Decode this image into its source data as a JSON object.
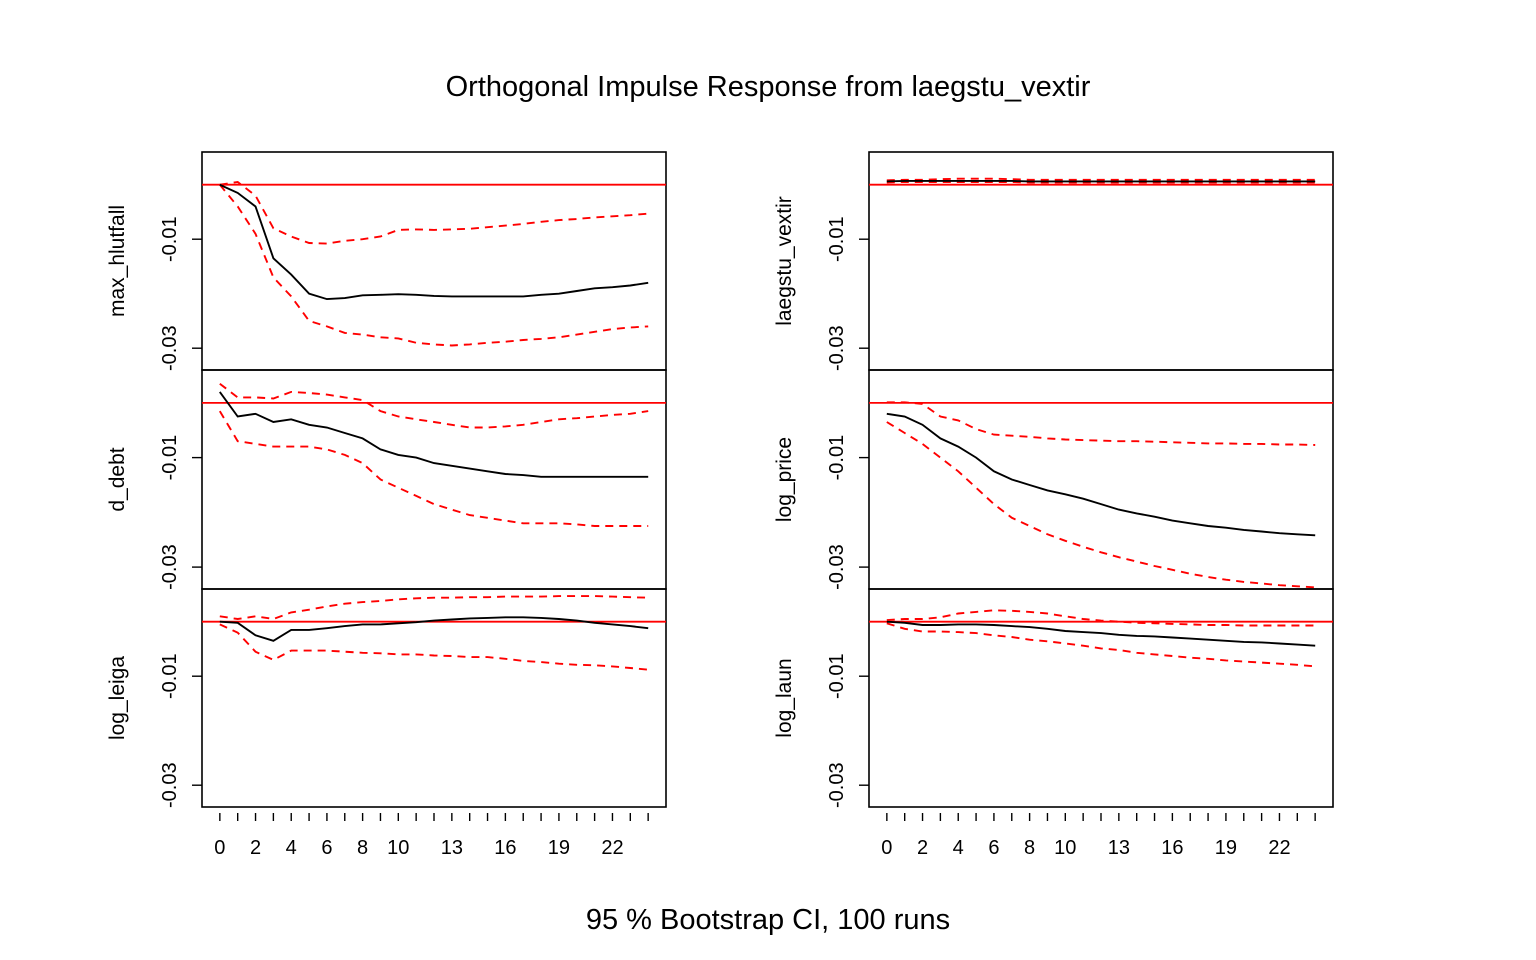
{
  "chart_data": {
    "type": "line",
    "title": "Orthogonal Impulse Response from laegstu_vextir",
    "footer": "95 % Bootstrap CI,  100 runs",
    "x": [
      0,
      1,
      2,
      3,
      4,
      5,
      6,
      7,
      8,
      9,
      10,
      11,
      12,
      13,
      14,
      15,
      16,
      17,
      18,
      19,
      20,
      21,
      22,
      23,
      24
    ],
    "x_tick_labels": [
      "0",
      "2",
      "4",
      "6",
      "8",
      "10",
      "13",
      "16",
      "19",
      "22"
    ],
    "xlim": [
      -1,
      25
    ],
    "ylim": [
      -0.034,
      0.006
    ],
    "y_tick_labels": [
      "-0.01",
      "-0.03"
    ],
    "y_tick_values": [
      -0.01,
      -0.03
    ],
    "zero_line_color": "#ff0000",
    "response_color": "#000000",
    "ci_color": "#ff0000",
    "panels": [
      {
        "name": "max_hlutfall",
        "column": "left",
        "response": [
          0,
          -0.0015,
          -0.004,
          -0.0135,
          -0.0165,
          -0.02,
          -0.021,
          -0.0208,
          -0.0203,
          -0.0202,
          -0.0201,
          -0.0202,
          -0.0204,
          -0.0205,
          -0.0205,
          -0.0205,
          -0.0205,
          -0.0205,
          -0.0202,
          -0.02,
          -0.0195,
          -0.019,
          -0.0188,
          -0.0185,
          -0.018
        ],
        "lower": [
          0,
          -0.004,
          -0.009,
          -0.017,
          -0.0205,
          -0.025,
          -0.026,
          -0.0272,
          -0.0275,
          -0.028,
          -0.0282,
          -0.029,
          -0.0293,
          -0.0295,
          -0.0293,
          -0.029,
          -0.0288,
          -0.0285,
          -0.0283,
          -0.028,
          -0.0275,
          -0.027,
          -0.0265,
          -0.0262,
          -0.026
        ],
        "upper": [
          0,
          0.0005,
          -0.002,
          -0.008,
          -0.0095,
          -0.0107,
          -0.0108,
          -0.0103,
          -0.01,
          -0.0095,
          -0.0083,
          -0.0082,
          -0.0083,
          -0.0082,
          -0.0081,
          -0.0078,
          -0.0075,
          -0.0072,
          -0.0068,
          -0.0065,
          -0.0063,
          -0.006,
          -0.0058,
          -0.0056,
          -0.0053
        ]
      },
      {
        "name": "d_debt",
        "column": "left",
        "response": [
          0.002,
          -0.0025,
          -0.002,
          -0.0035,
          -0.003,
          -0.004,
          -0.0045,
          -0.0055,
          -0.0065,
          -0.0085,
          -0.0095,
          -0.01,
          -0.011,
          -0.0115,
          -0.012,
          -0.0125,
          -0.013,
          -0.0132,
          -0.0135,
          -0.0135,
          -0.0135,
          -0.0135,
          -0.0135,
          -0.0135,
          -0.0135
        ],
        "lower": [
          -0.0015,
          -0.007,
          -0.0075,
          -0.008,
          -0.008,
          -0.008,
          -0.0085,
          -0.0095,
          -0.011,
          -0.014,
          -0.0155,
          -0.017,
          -0.0185,
          -0.0195,
          -0.0205,
          -0.021,
          -0.0215,
          -0.022,
          -0.022,
          -0.022,
          -0.0222,
          -0.0225,
          -0.0225,
          -0.0225,
          -0.0225
        ],
        "upper": [
          0.0035,
          0.001,
          0.001,
          0.0008,
          0.002,
          0.0018,
          0.0015,
          0.001,
          0.0005,
          -0.0015,
          -0.0025,
          -0.003,
          -0.0035,
          -0.004,
          -0.0045,
          -0.0045,
          -0.0043,
          -0.004,
          -0.0035,
          -0.003,
          -0.0028,
          -0.0025,
          -0.0022,
          -0.002,
          -0.0015
        ]
      },
      {
        "name": "log_leiga",
        "column": "left",
        "response": [
          0,
          -0.0002,
          -0.0025,
          -0.0035,
          -0.0015,
          -0.0015,
          -0.0012,
          -0.0008,
          -0.0005,
          -0.0005,
          -0.0003,
          -0.0001,
          0.0002,
          0.0004,
          0.0006,
          0.0007,
          0.0008,
          0.0008,
          0.0007,
          0.0005,
          0.0002,
          -0.0002,
          -0.0005,
          -0.0008,
          -0.0012
        ],
        "lower": [
          -0.0005,
          -0.002,
          -0.0055,
          -0.007,
          -0.0053,
          -0.0053,
          -0.0053,
          -0.0055,
          -0.0057,
          -0.0058,
          -0.006,
          -0.006,
          -0.0062,
          -0.0063,
          -0.0065,
          -0.0065,
          -0.0068,
          -0.0072,
          -0.0074,
          -0.0077,
          -0.0079,
          -0.008,
          -0.0082,
          -0.0085,
          -0.0088
        ],
        "upper": [
          0.001,
          0.0005,
          0.001,
          0.0005,
          0.0017,
          0.0022,
          0.0028,
          0.0033,
          0.0036,
          0.0038,
          0.0041,
          0.0043,
          0.0044,
          0.0044,
          0.0045,
          0.0045,
          0.0046,
          0.0046,
          0.0046,
          0.0047,
          0.0047,
          0.0047,
          0.0046,
          0.0045,
          0.0044
        ]
      },
      {
        "name": "laegstu_vextir",
        "column": "right",
        "response": [
          0.0006,
          0.0007,
          0.0007,
          0.0007,
          0.0007,
          0.0007,
          0.0007,
          0.0007,
          0.0006,
          0.0006,
          0.0006,
          0.0006,
          0.0006,
          0.0006,
          0.0006,
          0.0006,
          0.0006,
          0.0006,
          0.0006,
          0.0006,
          0.0006,
          0.0006,
          0.0006,
          0.0006,
          0.0006
        ],
        "lower": [
          0.0004,
          0.0005,
          0.0005,
          0.0005,
          0.0005,
          0.0005,
          0.0005,
          0.0005,
          0.0004,
          0.0004,
          0.0004,
          0.0004,
          0.0004,
          0.0004,
          0.0004,
          0.0004,
          0.0004,
          0.0004,
          0.0004,
          0.0004,
          0.0004,
          0.0004,
          0.0004,
          0.0004,
          0.0004
        ],
        "upper": [
          0.0008,
          0.0009,
          0.0009,
          0.001,
          0.0011,
          0.0011,
          0.0011,
          0.001,
          0.0009,
          0.0009,
          0.0009,
          0.0009,
          0.0009,
          0.0009,
          0.0009,
          0.0009,
          0.0009,
          0.0009,
          0.0009,
          0.0009,
          0.0009,
          0.0009,
          0.0009,
          0.0009,
          0.0009
        ]
      },
      {
        "name": "log_price",
        "column": "right",
        "response": [
          -0.002,
          -0.0025,
          -0.004,
          -0.0065,
          -0.008,
          -0.01,
          -0.0125,
          -0.014,
          -0.015,
          -0.016,
          -0.0167,
          -0.0175,
          -0.0185,
          -0.0195,
          -0.0202,
          -0.0208,
          -0.0215,
          -0.022,
          -0.0225,
          -0.0228,
          -0.0232,
          -0.0235,
          -0.0238,
          -0.024,
          -0.0242
        ],
        "lower": [
          -0.0035,
          -0.0055,
          -0.0075,
          -0.01,
          -0.0125,
          -0.0155,
          -0.0185,
          -0.021,
          -0.0225,
          -0.024,
          -0.0252,
          -0.0263,
          -0.0273,
          -0.0282,
          -0.029,
          -0.0298,
          -0.0305,
          -0.0312,
          -0.0318,
          -0.0323,
          -0.0327,
          -0.033,
          -0.0333,
          -0.0335,
          -0.0337
        ],
        "upper": [
          0.0001,
          0.0001,
          -0.0002,
          -0.0025,
          -0.0032,
          -0.0048,
          -0.0058,
          -0.006,
          -0.0062,
          -0.0065,
          -0.0067,
          -0.0068,
          -0.0069,
          -0.007,
          -0.007,
          -0.0071,
          -0.0072,
          -0.0073,
          -0.0074,
          -0.0074,
          -0.0075,
          -0.0075,
          -0.0076,
          -0.0076,
          -0.0077
        ]
      },
      {
        "name": "log_laun",
        "column": "right",
        "response": [
          0,
          -0.0002,
          -0.0006,
          -0.0006,
          -0.0005,
          -0.0005,
          -0.0006,
          -0.0008,
          -0.001,
          -0.0013,
          -0.0017,
          -0.0019,
          -0.0021,
          -0.0024,
          -0.0026,
          -0.0027,
          -0.0029,
          -0.0031,
          -0.0033,
          -0.0035,
          -0.0037,
          -0.0038,
          -0.004,
          -0.0042,
          -0.0044
        ],
        "lower": [
          -0.0003,
          -0.0013,
          -0.0018,
          -0.0018,
          -0.0019,
          -0.0021,
          -0.0025,
          -0.0028,
          -0.0033,
          -0.0036,
          -0.004,
          -0.0044,
          -0.0049,
          -0.0052,
          -0.0057,
          -0.006,
          -0.0063,
          -0.0066,
          -0.0068,
          -0.0071,
          -0.0073,
          -0.0075,
          -0.0077,
          -0.0079,
          -0.0082
        ],
        "upper": [
          0.0003,
          0.0005,
          0.0005,
          0.0008,
          0.0015,
          0.0018,
          0.0021,
          0.002,
          0.0018,
          0.0015,
          0.001,
          0.0005,
          0.0002,
          0,
          -0.0002,
          -0.0003,
          -0.0004,
          -0.0005,
          -0.0006,
          -0.0006,
          -0.0007,
          -0.0007,
          -0.0007,
          -0.0007,
          -0.0007
        ]
      }
    ]
  }
}
